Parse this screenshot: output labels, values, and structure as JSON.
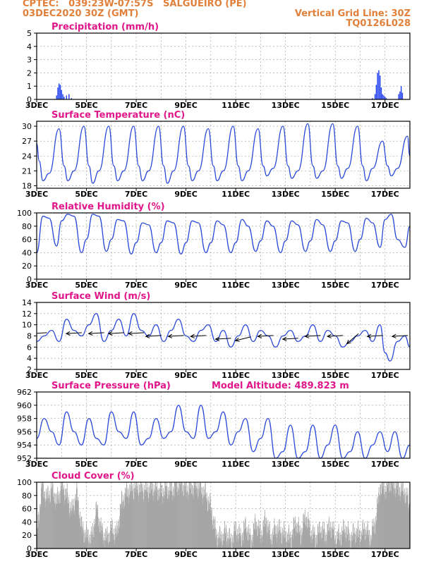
{
  "header": {
    "line1": "CPTEC:   039:23W-07:57S   SALGUEIRO (PE)",
    "line2": "03DEC2020 30Z (GMT)",
    "grid_note": "Vertical Grid Line: 30Z",
    "code": "TQ0126L028"
  },
  "colors": {
    "header": "#e0803a",
    "title": "#e0168a",
    "line": "#2b49d9",
    "bar": "#1f3ef0",
    "cloud": "#a6a6a6",
    "arrow": "#000000"
  },
  "x_ticks": [
    "3DEC",
    "5DEC",
    "7DEC",
    "9DEC",
    "11DEC",
    "13DEC",
    "15DEC",
    "17DEC"
  ],
  "chart_data": [
    {
      "id": "precip",
      "type": "bar",
      "title": "Precipitation (mm/h)",
      "ylim": [
        0,
        5
      ],
      "yticks": [
        0,
        1,
        2,
        3,
        4,
        5
      ],
      "x_range_days": [
        3,
        18
      ],
      "x": [
        3.8,
        3.85,
        3.9,
        3.95,
        4.0,
        4.05,
        4.1,
        4.2,
        4.3,
        4.4,
        16.5,
        16.6,
        16.65,
        16.7,
        16.75,
        16.8,
        16.85,
        16.9,
        16.95,
        17.0,
        17.05,
        17.55,
        17.6,
        17.65,
        17.7
      ],
      "values": [
        0.3,
        0.9,
        1.2,
        1.1,
        0.7,
        0.4,
        0.2,
        0.3,
        0.4,
        0.1,
        0.1,
        0.4,
        1.1,
        2.0,
        2.2,
        1.8,
        0.9,
        0.4,
        0.3,
        0.2,
        0.1,
        0.4,
        0.6,
        1.0,
        0.5
      ]
    },
    {
      "id": "temp",
      "type": "line",
      "title": "Surface Temperature (nC)",
      "ylim": [
        17.5,
        31
      ],
      "yticks": [
        18,
        21,
        24,
        27,
        30
      ],
      "x_range_days": [
        3,
        18
      ],
      "x": [
        3,
        3.1,
        3.25,
        3.5,
        3.9,
        4.1,
        4.25,
        4.5,
        4.9,
        5.1,
        5.25,
        5.5,
        5.9,
        6.1,
        6.25,
        6.5,
        6.9,
        7.1,
        7.25,
        7.5,
        7.9,
        8.1,
        8.25,
        8.5,
        8.9,
        9.1,
        9.25,
        9.5,
        9.9,
        10.1,
        10.25,
        10.5,
        10.9,
        11.1,
        11.25,
        11.5,
        11.9,
        12.1,
        12.25,
        12.5,
        12.9,
        13.1,
        13.25,
        13.5,
        13.9,
        14.1,
        14.25,
        14.5,
        14.9,
        15.1,
        15.25,
        15.5,
        15.9,
        16.1,
        16.25,
        16.5,
        16.9,
        17.1,
        17.25,
        17.5,
        17.9,
        18
      ],
      "values": [
        26.5,
        23,
        19,
        20.5,
        29.5,
        22,
        19,
        21,
        30,
        22,
        18.5,
        21,
        30,
        22,
        19,
        21,
        30,
        22,
        19,
        21,
        30,
        22,
        18.5,
        21,
        30,
        22,
        19,
        21,
        29.5,
        22,
        19,
        21,
        30,
        22,
        19,
        21,
        29.5,
        22,
        20,
        21.5,
        30,
        22,
        19.5,
        21,
        30.5,
        22,
        19.5,
        21,
        30.5,
        22,
        19.5,
        21.5,
        30,
        22,
        19,
        21.5,
        27,
        22,
        20,
        21.5,
        28,
        24
      ]
    },
    {
      "id": "rh",
      "type": "line",
      "title": "Relative Humidity (%)",
      "ylim": [
        0,
        100
      ],
      "yticks": [
        0,
        20,
        40,
        60,
        80,
        100
      ],
      "x_range_days": [
        3,
        18
      ],
      "x": [
        3,
        3.25,
        3.5,
        3.8,
        4.0,
        4.25,
        4.5,
        4.8,
        5.0,
        5.25,
        5.5,
        5.8,
        6.0,
        6.25,
        6.5,
        6.8,
        7.0,
        7.25,
        7.5,
        7.8,
        8.0,
        8.25,
        8.5,
        8.8,
        9.0,
        9.25,
        9.5,
        9.8,
        10.0,
        10.25,
        10.5,
        10.8,
        11.0,
        11.25,
        11.5,
        11.8,
        12.0,
        12.25,
        12.5,
        12.8,
        13.0,
        13.25,
        13.5,
        13.8,
        14.0,
        14.25,
        14.5,
        14.8,
        15.0,
        15.25,
        15.5,
        15.8,
        16.0,
        16.25,
        16.5,
        16.8,
        17.0,
        17.25,
        17.5,
        17.8,
        18
      ],
      "values": [
        40,
        95,
        92,
        50,
        88,
        98,
        95,
        40,
        60,
        98,
        95,
        42,
        60,
        90,
        88,
        38,
        55,
        85,
        82,
        40,
        55,
        88,
        85,
        38,
        55,
        88,
        85,
        40,
        55,
        88,
        82,
        40,
        55,
        90,
        80,
        42,
        58,
        88,
        80,
        40,
        58,
        88,
        82,
        42,
        58,
        90,
        82,
        42,
        58,
        88,
        85,
        42,
        60,
        92,
        85,
        48,
        90,
        98,
        60,
        48,
        80
      ]
    },
    {
      "id": "wind",
      "type": "line",
      "title": "Surface Wind (m/s)",
      "ylim": [
        2,
        14
      ],
      "yticks": [
        2,
        4,
        6,
        8,
        10,
        12,
        14
      ],
      "x_range_days": [
        3,
        18
      ],
      "x": [
        3,
        3.3,
        3.6,
        3.9,
        4.2,
        4.5,
        4.8,
        5.1,
        5.4,
        5.7,
        6.0,
        6.3,
        6.6,
        6.9,
        7.2,
        7.5,
        7.8,
        8.1,
        8.4,
        8.7,
        9.0,
        9.3,
        9.6,
        9.9,
        10.2,
        10.5,
        10.8,
        11.1,
        11.4,
        11.7,
        12.0,
        12.3,
        12.6,
        12.9,
        13.2,
        13.5,
        13.8,
        14.1,
        14.4,
        14.7,
        15.0,
        15.3,
        15.6,
        15.9,
        16.2,
        16.5,
        16.8,
        17.0,
        17.2,
        17.5,
        17.8,
        18
      ],
      "values": [
        7,
        8,
        9,
        7,
        11,
        9,
        8,
        10,
        12,
        7,
        9,
        11,
        8,
        12,
        9,
        8,
        10,
        7,
        9,
        11,
        8,
        7,
        9,
        10,
        7,
        9,
        6,
        8,
        10,
        7,
        9,
        8,
        6,
        8,
        9,
        7,
        8,
        10,
        7,
        9,
        8,
        6,
        7,
        8,
        9,
        7,
        10,
        5,
        3.5,
        7,
        8,
        6
      ],
      "arrows": [
        {
          "x": 3.1,
          "speed": 8.5,
          "dir": "W"
        },
        {
          "x": 4.5,
          "speed": 8.5,
          "dir": "W"
        },
        {
          "x": 5.4,
          "speed": 8.5,
          "dir": "W"
        },
        {
          "x": 6.2,
          "speed": 8.5,
          "dir": "W"
        },
        {
          "x": 7.0,
          "speed": 8.5,
          "dir": "W"
        },
        {
          "x": 7.7,
          "speed": 8.0,
          "dir": "W"
        },
        {
          "x": 8.6,
          "speed": 8.0,
          "dir": "W"
        },
        {
          "x": 9.5,
          "speed": 8.0,
          "dir": "W"
        },
        {
          "x": 10.5,
          "speed": 7.5,
          "dir": "W"
        },
        {
          "x": 11.3,
          "speed": 7.5,
          "dir": "WSW"
        },
        {
          "x": 12.2,
          "speed": 8.0,
          "dir": "W"
        },
        {
          "x": 13.2,
          "speed": 7.5,
          "dir": "W"
        },
        {
          "x": 14.1,
          "speed": 8.0,
          "dir": "W"
        },
        {
          "x": 15.0,
          "speed": 8.0,
          "dir": "W"
        },
        {
          "x": 15.7,
          "speed": 7.5,
          "dir": "SW"
        },
        {
          "x": 16.6,
          "speed": 8.0,
          "dir": "W"
        },
        {
          "x": 17.6,
          "speed": 8.0,
          "dir": "W"
        }
      ]
    },
    {
      "id": "pres",
      "type": "line",
      "title": "Surface Pressure (hPa)",
      "note": "Model Altitude: 489.823 m",
      "ylim": [
        952,
        962
      ],
      "yticks": [
        952,
        954,
        956,
        958,
        960,
        962
      ],
      "x_range_days": [
        3,
        18
      ],
      "x": [
        3,
        3.3,
        3.6,
        3.9,
        4.2,
        4.5,
        4.8,
        5.1,
        5.4,
        5.7,
        6.0,
        6.3,
        6.6,
        6.9,
        7.2,
        7.5,
        7.8,
        8.1,
        8.4,
        8.7,
        9.0,
        9.3,
        9.6,
        9.9,
        10.2,
        10.5,
        10.8,
        11.1,
        11.4,
        11.7,
        12.0,
        12.3,
        12.6,
        12.9,
        13.2,
        13.5,
        13.8,
        14.1,
        14.4,
        14.7,
        15.0,
        15.3,
        15.6,
        15.9,
        16.2,
        16.5,
        16.8,
        17.1,
        17.4,
        17.7,
        18
      ],
      "values": [
        955,
        958,
        956,
        954,
        959,
        956,
        954,
        958,
        955,
        954,
        959,
        956,
        955,
        959,
        954,
        955,
        958,
        955,
        956,
        960,
        956,
        955,
        960,
        955,
        956,
        959,
        954,
        956,
        958,
        953,
        955,
        958,
        952,
        953,
        957,
        952,
        953,
        957,
        952,
        954,
        957,
        952,
        953,
        956,
        952,
        954,
        956,
        953,
        956,
        952,
        954
      ]
    },
    {
      "id": "cloud",
      "type": "area",
      "title": "Cloud Cover (%)",
      "ylim": [
        0,
        100
      ],
      "yticks": [
        0,
        20,
        40,
        60,
        80,
        100
      ],
      "x_range_days": [
        3,
        18
      ],
      "x": [
        3,
        3.2,
        3.4,
        3.6,
        3.8,
        4.0,
        4.2,
        4.4,
        4.6,
        4.8,
        5.0,
        5.2,
        5.4,
        5.6,
        5.8,
        6.0,
        6.2,
        6.4,
        6.6,
        6.8,
        7.0,
        7.2,
        7.4,
        7.6,
        7.8,
        8.0,
        8.2,
        8.4,
        8.6,
        8.8,
        9.0,
        9.2,
        9.4,
        9.6,
        9.8,
        10.0,
        10.2,
        10.4,
        10.6,
        10.8,
        11.0,
        11.2,
        11.4,
        11.6,
        11.8,
        12.0,
        12.2,
        12.4,
        12.6,
        12.8,
        13.0,
        13.2,
        13.4,
        13.6,
        13.8,
        14.0,
        14.2,
        14.4,
        14.6,
        14.8,
        15.0,
        15.2,
        15.4,
        15.6,
        15.8,
        16.0,
        16.2,
        16.4,
        16.6,
        16.8,
        17.0,
        17.2,
        17.4,
        17.6,
        17.8,
        18
      ],
      "values": [
        20,
        95,
        75,
        90,
        70,
        95,
        80,
        55,
        85,
        30,
        20,
        15,
        60,
        25,
        15,
        30,
        20,
        70,
        85,
        90,
        92,
        90,
        88,
        92,
        90,
        85,
        90,
        88,
        95,
        98,
        90,
        92,
        95,
        90,
        80,
        60,
        20,
        15,
        25,
        10,
        30,
        15,
        35,
        10,
        40,
        20,
        45,
        15,
        30,
        25,
        20,
        15,
        40,
        20,
        50,
        25,
        15,
        30,
        20,
        35,
        15,
        20,
        30,
        15,
        25,
        20,
        30,
        15,
        40,
        95,
        90,
        100,
        95,
        90,
        85,
        60
      ]
    }
  ]
}
